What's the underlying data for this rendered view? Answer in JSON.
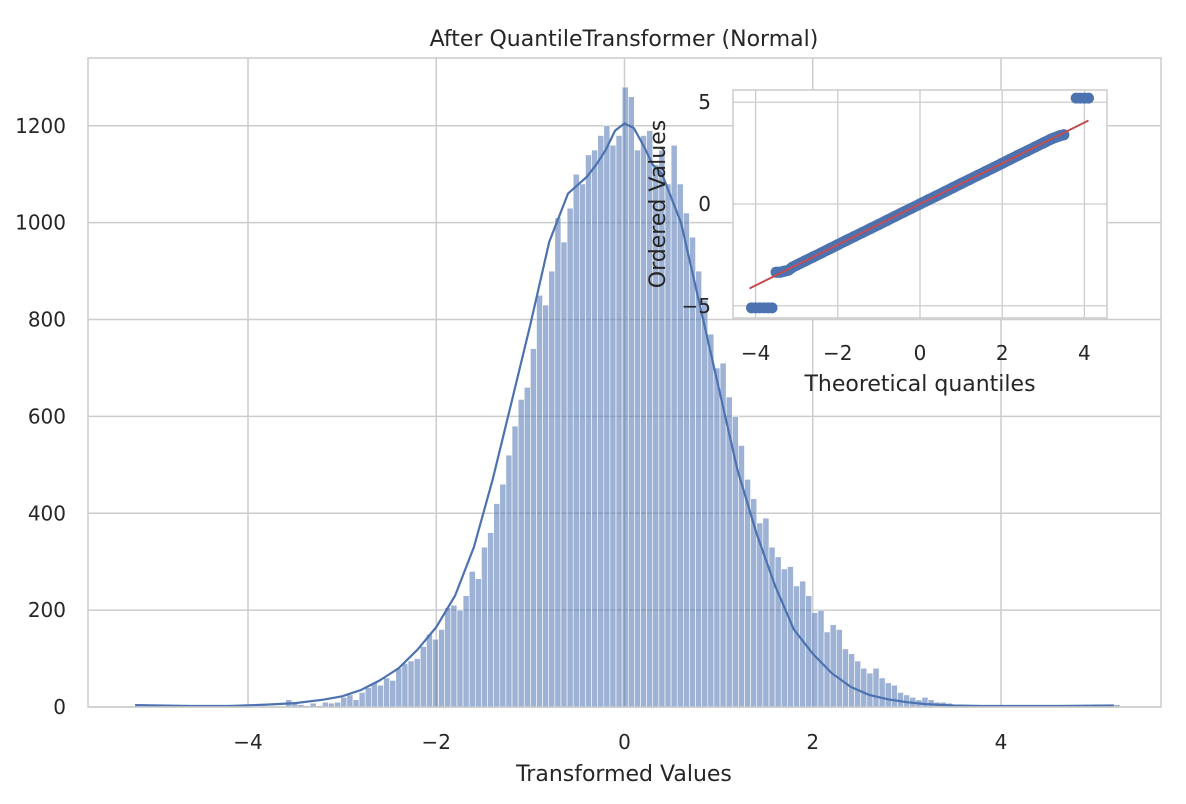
{
  "chart_data": [
    {
      "type": "histogram",
      "title": "After QuantileTransformer (Normal)",
      "xlabel": "Transformed Values",
      "ylabel": "",
      "xlim": [
        -5.7,
        5.7
      ],
      "ylim": [
        0,
        1340
      ],
      "xticks": [
        -4,
        -2,
        0,
        2,
        4
      ],
      "xtick_labels": [
        "−4",
        "−2",
        "0",
        "2",
        "4"
      ],
      "yticks": [
        0,
        200,
        400,
        600,
        800,
        1000,
        1200
      ],
      "ytick_labels": [
        "0",
        "200",
        "400",
        "600",
        "800",
        "1000",
        "1200"
      ],
      "grid": true,
      "bin_range": [
        -5.2,
        5.2
      ],
      "bin_width": 0.065,
      "bar_color": "#4c72b0",
      "kde_color": "#4c72b0",
      "bins": [
        {
          "x": -5.2,
          "count": 5
        },
        {
          "x": -3.6,
          "count": 15
        },
        {
          "x": -3.535,
          "count": 8
        },
        {
          "x": -3.47,
          "count": 5
        },
        {
          "x": -3.405,
          "count": 3
        },
        {
          "x": -3.34,
          "count": 8
        },
        {
          "x": -3.275,
          "count": 3
        },
        {
          "x": -3.21,
          "count": 10
        },
        {
          "x": -3.145,
          "count": 8
        },
        {
          "x": -3.08,
          "count": 10
        },
        {
          "x": -3.015,
          "count": 20
        },
        {
          "x": -2.95,
          "count": 25
        },
        {
          "x": -2.885,
          "count": 15
        },
        {
          "x": -2.82,
          "count": 30
        },
        {
          "x": -2.755,
          "count": 40
        },
        {
          "x": -2.69,
          "count": 50
        },
        {
          "x": -2.625,
          "count": 45
        },
        {
          "x": -2.56,
          "count": 60
        },
        {
          "x": -2.495,
          "count": 55
        },
        {
          "x": -2.43,
          "count": 80
        },
        {
          "x": -2.365,
          "count": 90
        },
        {
          "x": -2.3,
          "count": 95
        },
        {
          "x": -2.235,
          "count": 100
        },
        {
          "x": -2.17,
          "count": 125
        },
        {
          "x": -2.105,
          "count": 150
        },
        {
          "x": -2.04,
          "count": 140
        },
        {
          "x": -1.975,
          "count": 160
        },
        {
          "x": -1.91,
          "count": 205
        },
        {
          "x": -1.845,
          "count": 210
        },
        {
          "x": -1.78,
          "count": 200
        },
        {
          "x": -1.715,
          "count": 230
        },
        {
          "x": -1.65,
          "count": 280
        },
        {
          "x": -1.585,
          "count": 265
        },
        {
          "x": -1.52,
          "count": 330
        },
        {
          "x": -1.455,
          "count": 360
        },
        {
          "x": -1.39,
          "count": 420
        },
        {
          "x": -1.325,
          "count": 460
        },
        {
          "x": -1.26,
          "count": 520
        },
        {
          "x": -1.195,
          "count": 580
        },
        {
          "x": -1.13,
          "count": 635
        },
        {
          "x": -1.065,
          "count": 660
        },
        {
          "x": -1.0,
          "count": 740
        },
        {
          "x": -0.935,
          "count": 850
        },
        {
          "x": -0.87,
          "count": 830
        },
        {
          "x": -0.805,
          "count": 900
        },
        {
          "x": -0.74,
          "count": 1010
        },
        {
          "x": -0.675,
          "count": 960
        },
        {
          "x": -0.61,
          "count": 1030
        },
        {
          "x": -0.545,
          "count": 1100
        },
        {
          "x": -0.48,
          "count": 1080
        },
        {
          "x": -0.415,
          "count": 1140
        },
        {
          "x": -0.35,
          "count": 1150
        },
        {
          "x": -0.285,
          "count": 1180
        },
        {
          "x": -0.22,
          "count": 1200
        },
        {
          "x": -0.155,
          "count": 1160
        },
        {
          "x": -0.09,
          "count": 1180
        },
        {
          "x": -0.025,
          "count": 1280
        },
        {
          "x": 0.04,
          "count": 1260
        },
        {
          "x": 0.105,
          "count": 1150
        },
        {
          "x": 0.17,
          "count": 1180
        },
        {
          "x": 0.235,
          "count": 1190
        },
        {
          "x": 0.3,
          "count": 1120
        },
        {
          "x": 0.365,
          "count": 1150
        },
        {
          "x": 0.43,
          "count": 1080
        },
        {
          "x": 0.495,
          "count": 1160
        },
        {
          "x": 0.56,
          "count": 1080
        },
        {
          "x": 0.625,
          "count": 1020
        },
        {
          "x": 0.69,
          "count": 970
        },
        {
          "x": 0.755,
          "count": 900
        },
        {
          "x": 0.82,
          "count": 840
        },
        {
          "x": 0.885,
          "count": 770
        },
        {
          "x": 0.95,
          "count": 700
        },
        {
          "x": 1.015,
          "count": 710
        },
        {
          "x": 1.08,
          "count": 640
        },
        {
          "x": 1.145,
          "count": 600
        },
        {
          "x": 1.21,
          "count": 540
        },
        {
          "x": 1.275,
          "count": 470
        },
        {
          "x": 1.34,
          "count": 430
        },
        {
          "x": 1.405,
          "count": 380
        },
        {
          "x": 1.47,
          "count": 390
        },
        {
          "x": 1.535,
          "count": 330
        },
        {
          "x": 1.6,
          "count": 310
        },
        {
          "x": 1.665,
          "count": 285
        },
        {
          "x": 1.73,
          "count": 290
        },
        {
          "x": 1.795,
          "count": 250
        },
        {
          "x": 1.86,
          "count": 260
        },
        {
          "x": 1.925,
          "count": 230
        },
        {
          "x": 1.99,
          "count": 195
        },
        {
          "x": 2.055,
          "count": 200
        },
        {
          "x": 2.12,
          "count": 155
        },
        {
          "x": 2.185,
          "count": 170
        },
        {
          "x": 2.25,
          "count": 160
        },
        {
          "x": 2.315,
          "count": 120
        },
        {
          "x": 2.38,
          "count": 110
        },
        {
          "x": 2.445,
          "count": 95
        },
        {
          "x": 2.51,
          "count": 80
        },
        {
          "x": 2.575,
          "count": 70
        },
        {
          "x": 2.64,
          "count": 80
        },
        {
          "x": 2.705,
          "count": 60
        },
        {
          "x": 2.77,
          "count": 50
        },
        {
          "x": 2.835,
          "count": 45
        },
        {
          "x": 2.9,
          "count": 30
        },
        {
          "x": 2.965,
          "count": 25
        },
        {
          "x": 3.03,
          "count": 20
        },
        {
          "x": 3.095,
          "count": 15
        },
        {
          "x": 3.16,
          "count": 20
        },
        {
          "x": 3.225,
          "count": 15
        },
        {
          "x": 3.29,
          "count": 10
        },
        {
          "x": 3.355,
          "count": 10
        },
        {
          "x": 3.42,
          "count": 8
        },
        {
          "x": 3.485,
          "count": 5
        },
        {
          "x": 3.55,
          "count": 5
        },
        {
          "x": 5.2,
          "count": 5
        }
      ],
      "kde": {
        "x": [
          -5.2,
          -4.6,
          -4.2,
          -3.8,
          -3.5,
          -3.2,
          -3.0,
          -2.8,
          -2.6,
          -2.4,
          -2.2,
          -2.0,
          -1.8,
          -1.6,
          -1.4,
          -1.2,
          -1.0,
          -0.8,
          -0.6,
          -0.4,
          -0.3,
          -0.2,
          -0.1,
          0.0,
          0.1,
          0.2,
          0.3,
          0.4,
          0.6,
          0.8,
          1.0,
          1.2,
          1.4,
          1.6,
          1.8,
          2.0,
          2.2,
          2.4,
          2.6,
          2.8,
          3.0,
          3.2,
          3.5,
          3.8,
          4.2,
          4.6,
          5.2
        ],
        "y": [
          4,
          2,
          2,
          5,
          8,
          15,
          22,
          35,
          55,
          80,
          118,
          165,
          230,
          330,
          470,
          630,
          790,
          960,
          1060,
          1095,
          1120,
          1150,
          1190,
          1205,
          1195,
          1160,
          1120,
          1100,
          1000,
          830,
          660,
          490,
          360,
          250,
          160,
          110,
          70,
          42,
          25,
          16,
          10,
          6,
          3,
          2,
          2,
          2,
          3
        ]
      }
    },
    {
      "type": "scatter",
      "title": "",
      "xlabel": "Theoretical quantiles",
      "ylabel": "Ordered Values",
      "xlim": [
        -4.55,
        4.55
      ],
      "ylim": [
        -5.6,
        5.6
      ],
      "xticks": [
        -4,
        -2,
        0,
        2,
        4
      ],
      "xtick_labels": [
        "−4",
        "−2",
        "0",
        "2",
        "4"
      ],
      "yticks": [
        -5,
        0,
        5
      ],
      "ytick_labels": [
        "−5",
        "0",
        "5"
      ],
      "grid": true,
      "marker_color": "#4c72b0",
      "line_color": "#c44e52",
      "points": {
        "x": [
          -4.1,
          -4.0,
          -3.9,
          -3.8,
          -3.7,
          -3.6,
          -3.5,
          -3.4,
          -3.3,
          -3.2,
          -3.1,
          -3.0,
          -2.9,
          -2.8,
          -2.6,
          -2.4,
          -2.2,
          -2.0,
          -1.8,
          -1.6,
          -1.4,
          -1.2,
          -1.0,
          -0.8,
          -0.6,
          -0.4,
          -0.2,
          0.0,
          0.2,
          0.4,
          0.6,
          0.8,
          1.0,
          1.2,
          1.4,
          1.6,
          1.8,
          2.0,
          2.2,
          2.4,
          2.6,
          2.8,
          3.0,
          3.2,
          3.4,
          3.5,
          3.8,
          3.9,
          4.0,
          4.1
        ],
        "y": [
          -5.1,
          -5.1,
          -5.1,
          -5.1,
          -5.1,
          -5.1,
          -3.35,
          -3.35,
          -3.3,
          -3.25,
          -3.1,
          -3.0,
          -2.9,
          -2.8,
          -2.6,
          -2.4,
          -2.2,
          -2.0,
          -1.8,
          -1.6,
          -1.4,
          -1.2,
          -1.0,
          -0.8,
          -0.6,
          -0.4,
          -0.2,
          0.0,
          0.2,
          0.4,
          0.6,
          0.8,
          1.0,
          1.2,
          1.4,
          1.6,
          1.8,
          2.0,
          2.2,
          2.4,
          2.6,
          2.8,
          3.0,
          3.2,
          3.35,
          3.4,
          5.2,
          5.2,
          5.2,
          5.2
        ]
      },
      "fit_line": {
        "x": [
          -4.15,
          4.1
        ],
        "y": [
          -4.15,
          4.1
        ]
      }
    }
  ]
}
